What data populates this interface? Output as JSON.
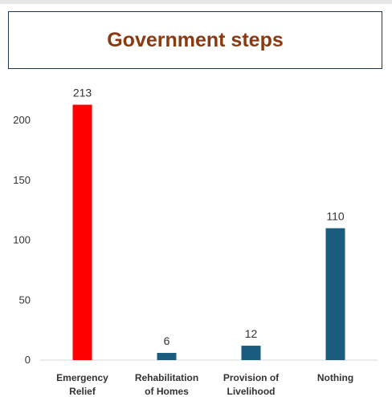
{
  "chart_data": {
    "type": "bar",
    "title": "Government steps",
    "categories": [
      [
        "Emergency",
        "Relief"
      ],
      [
        "Rehabilitation",
        "of Homes"
      ],
      [
        "Provision of",
        "Livelihood"
      ],
      [
        "Nothing"
      ]
    ],
    "values": [
      213,
      6,
      12,
      110
    ],
    "bar_colors": [
      "#ff0000",
      "#1a5c7d",
      "#1a5c7d",
      "#1a5c7d"
    ],
    "ylim": [
      0,
      200
    ],
    "yticks": [
      0,
      50,
      100,
      150,
      200
    ],
    "xlabel": "",
    "ylabel": "",
    "grid": false,
    "legend": "none"
  }
}
